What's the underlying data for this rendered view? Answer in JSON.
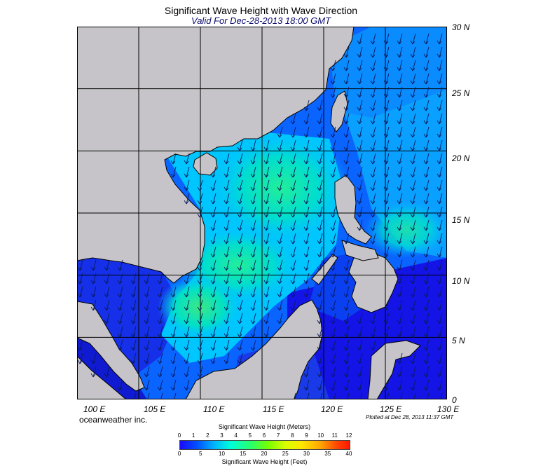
{
  "title": "Significant Wave Height with Wave Direction",
  "subtitle": "Valid For Dec-28-2013 18:00 GMT",
  "credit": "oceanweather inc.",
  "plotted": "Plotted at Dec 28, 2013 11:37 GMT",
  "lat_labels": [
    "30 N",
    "25 N",
    "20 N",
    "15 N",
    "10 N",
    "5 N",
    "0"
  ],
  "lon_labels": [
    "100 E",
    "105 E",
    "110 E",
    "115 E",
    "120 E",
    "125 E",
    "130 E"
  ],
  "colorbar": {
    "title_meters": "Significant Wave Height (Meters)",
    "title_feet": "Significant Wave Height (Feet)",
    "meters_ticks": [
      "0",
      "1",
      "2",
      "3",
      "4",
      "5",
      "6",
      "7",
      "8",
      "9",
      "10",
      "11",
      "12"
    ],
    "feet_ticks": [
      "0",
      "5",
      "10",
      "15",
      "20",
      "25",
      "30",
      "35",
      "40"
    ]
  },
  "map_extent": {
    "lon": [
      100,
      130
    ],
    "lat": [
      0,
      30
    ]
  },
  "colors": {
    "land": "#c6c4c8",
    "deep_blue": "#1414e6",
    "mid_blue": "#0a64ff",
    "cyan": "#00c8ff",
    "aqua_green": "#10eac0"
  }
}
